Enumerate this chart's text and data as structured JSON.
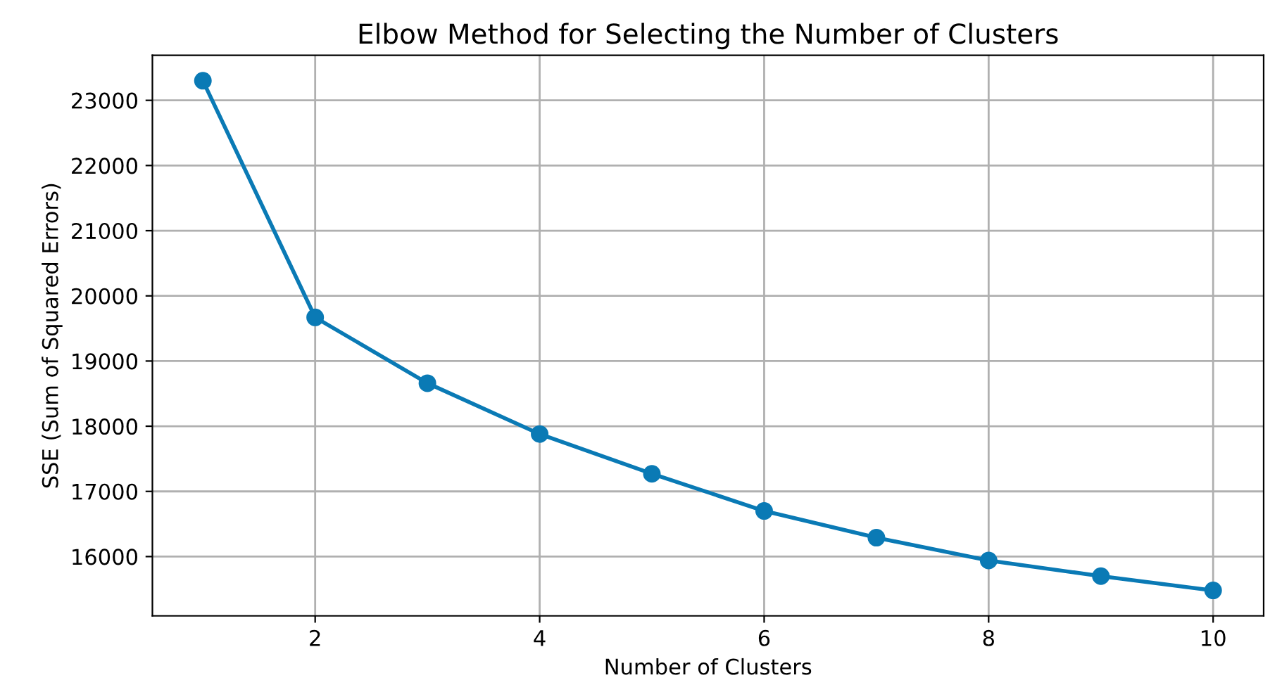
{
  "chart_data": {
    "type": "line",
    "title": "Elbow Method for Selecting the Number of Clusters",
    "xlabel": "Number of Clusters",
    "ylabel": "SSE (Sum of Squared Errors)",
    "x": [
      1,
      2,
      3,
      4,
      5,
      6,
      7,
      8,
      9,
      10
    ],
    "series": [
      {
        "color": "#0a7ab5",
        "values": [
          23300,
          19670,
          18660,
          17880,
          17270,
          16700,
          16290,
          15940,
          15700,
          15480
        ]
      }
    ],
    "xlim": [
      0.55,
      10.45
    ],
    "xticks": [
      2,
      4,
      6,
      8,
      10
    ],
    "ylim": [
      15090,
      23690
    ],
    "yticks": [
      16000,
      17000,
      18000,
      19000,
      20000,
      21000,
      22000,
      23000
    ],
    "grid": true,
    "marker": "circle",
    "line_style": "solid"
  }
}
